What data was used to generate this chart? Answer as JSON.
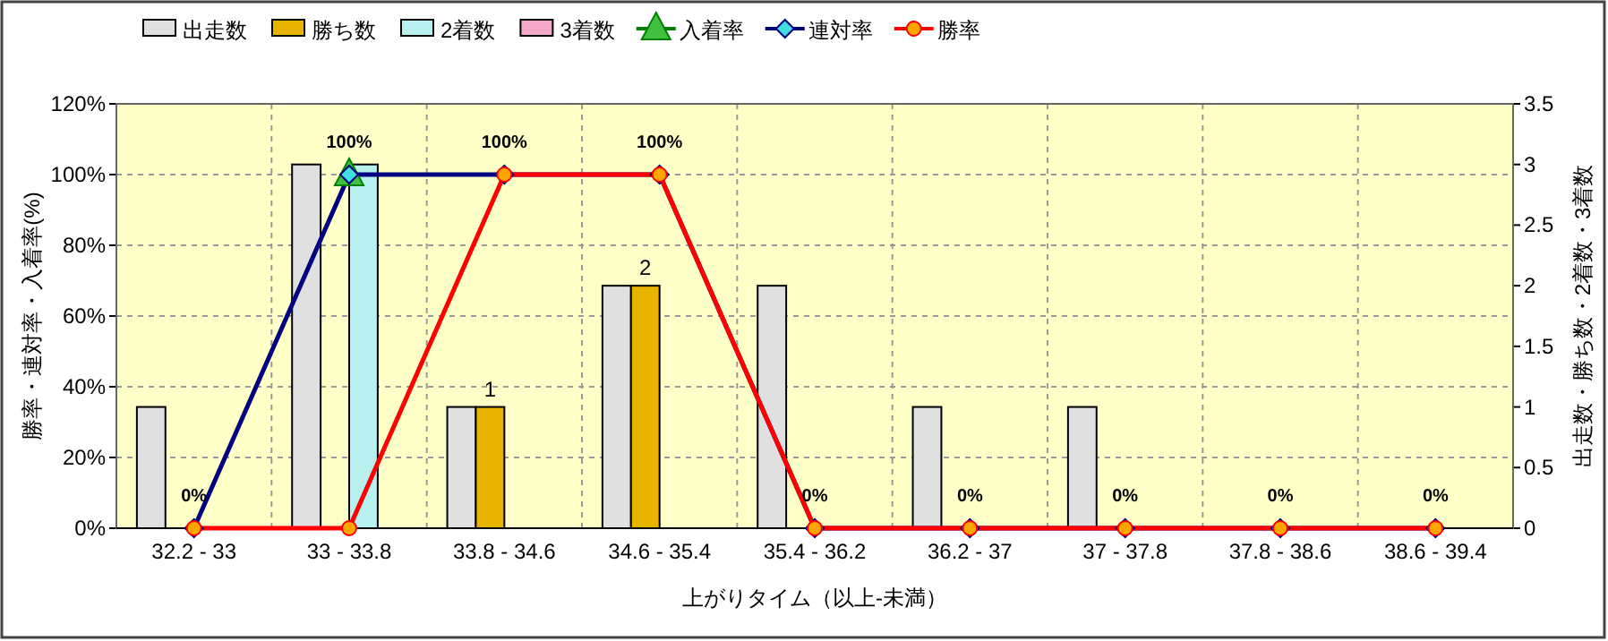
{
  "chart_data": {
    "type": "bar",
    "xlabel": "上がりタイム（以上-未満）",
    "ylabel": "勝率・連対率・入着率(%)",
    "y2label": "出走数・勝ち数・2着数・3着数",
    "categories": [
      "32.2 - 33",
      "33 - 33.8",
      "33.8 - 34.6",
      "34.6 - 35.4",
      "35.4 - 36.2",
      "36.2 - 37",
      "37 - 37.8",
      "37.8 - 38.6",
      "38.6 - 39.4"
    ],
    "ylim": [
      0,
      120
    ],
    "yticks": [
      {
        "value": 0,
        "label": "0%"
      },
      {
        "value": 20,
        "label": "20%"
      },
      {
        "value": 40,
        "label": "40%"
      },
      {
        "value": 60,
        "label": "60%"
      },
      {
        "value": 80,
        "label": "80%"
      },
      {
        "value": 100,
        "label": "100%"
      },
      {
        "value": 120,
        "label": "120%"
      }
    ],
    "y2lim": [
      0,
      3.5
    ],
    "y2ticks": [
      0,
      0.5,
      1,
      1.5,
      2,
      2.5,
      3,
      3.5
    ],
    "grid": true,
    "legend": "top",
    "series": [
      {
        "name": "出走数",
        "axis": "y2",
        "color": "#e0e0e0",
        "values": [
          1,
          3,
          1,
          2,
          2,
          1,
          1,
          0,
          0
        ]
      },
      {
        "name": "勝ち数",
        "axis": "y2",
        "color": "#e8b400",
        "values": [
          0,
          0,
          1,
          2,
          0,
          0,
          0,
          0,
          0
        ],
        "value_labels": [
          null,
          null,
          "1",
          "2",
          null,
          null,
          null,
          null,
          null
        ]
      },
      {
        "name": "2着数",
        "axis": "y2",
        "color": "#b8f0f0",
        "values": [
          0,
          3,
          0,
          0,
          0,
          0,
          0,
          0,
          0
        ]
      },
      {
        "name": "3着数",
        "axis": "y2",
        "color": "#f4a8c8",
        "values": [
          0,
          0,
          0,
          0,
          0,
          0,
          0,
          0,
          0
        ]
      },
      {
        "name": "入着率",
        "type": "line",
        "color": "#008000",
        "marker": "triangle",
        "values": [
          null,
          100,
          null,
          null,
          null,
          null,
          null,
          null,
          null
        ]
      },
      {
        "name": "連対率",
        "type": "line",
        "color": "#000080",
        "marker": "diamond",
        "values": [
          0,
          100,
          100,
          100,
          0,
          0,
          0,
          0,
          0
        ],
        "value_labels": [
          "0%",
          "100%",
          "100%",
          "100%",
          "0%",
          "0%",
          "0%",
          "0%",
          "0%"
        ]
      },
      {
        "name": "勝率",
        "type": "line",
        "color": "#ff0000",
        "marker": "circle",
        "values": [
          0,
          0,
          100,
          100,
          0,
          0,
          0,
          0,
          0
        ]
      }
    ]
  }
}
